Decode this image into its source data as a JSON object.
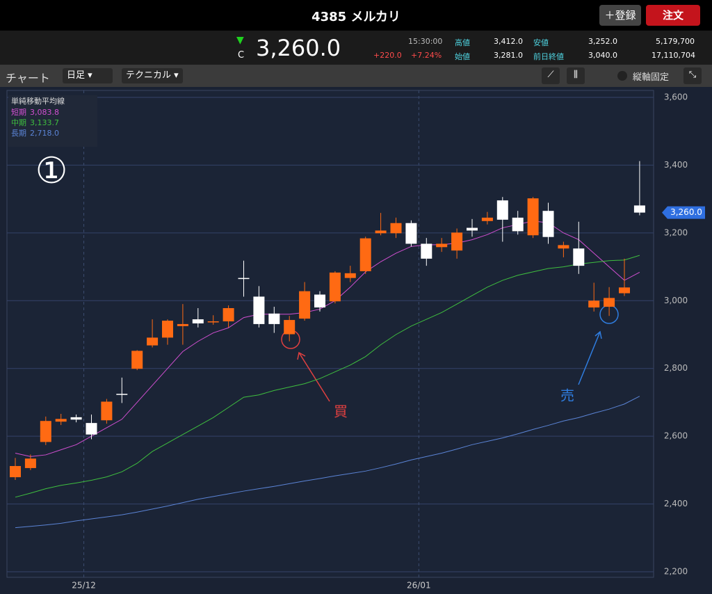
{
  "header": {
    "title": "4385 メルカリ",
    "add_button": "＋登録",
    "order_button": "注文"
  },
  "quote": {
    "direction": "▼",
    "close_mark": "C",
    "price": "3,260.0",
    "time": "15:30:00",
    "change": "+220.0",
    "change_pct": "+7.24%",
    "high_label": "高値",
    "high": "3,412.0",
    "low_label": "安値",
    "low": "3,252.0",
    "volume": "5,179,700",
    "open_label": "始値",
    "open": "3,281.0",
    "prev_label": "前日終値",
    "prev": "3,040.0",
    "turnover": "17,110,704"
  },
  "toolbar": {
    "title": "チャート",
    "period": "日足",
    "technical": "テクニカル",
    "axis_fixed": "縦軸固定"
  },
  "annotations": {
    "number": "①",
    "buy": "買",
    "sell": "売"
  },
  "chart_data": {
    "type": "candlestick",
    "legend_title": "単純移動平均線",
    "categories": [
      null,
      null,
      null,
      null,
      null,
      "25/12",
      null,
      null,
      null,
      null,
      null,
      null,
      null,
      null,
      null,
      null,
      null,
      null,
      null,
      null,
      null,
      null,
      null,
      null,
      null,
      null,
      null,
      "26/01",
      null,
      null,
      null,
      null,
      null,
      null,
      null,
      null,
      null,
      null,
      null,
      null,
      null,
      null
    ],
    "up_color": "#ff6a13",
    "down_color": "#ffffff",
    "open": [
      2479,
      2506,
      2583,
      2643,
      2656,
      2639,
      2647,
      2725,
      2799,
      2868,
      2891,
      2925,
      2945,
      2937,
      2939,
      3067,
      3012,
      2962,
      2901,
      2947,
      3018,
      2998,
      3067,
      3087,
      3199,
      3199,
      3229,
      3168,
      3158,
      3148,
      3215,
      3235,
      3296,
      3245,
      3193,
      3265,
      3154,
      3154,
      2980,
      2982,
      3022,
      3281
    ],
    "high": [
      2536,
      2546,
      2658,
      2666,
      2664,
      2664,
      2710,
      2773,
      2854,
      2945,
      2945,
      2990,
      2978,
      2957,
      2986,
      3118,
      3043,
      2982,
      2955,
      3055,
      3028,
      3087,
      3103,
      3189,
      3259,
      3245,
      3237,
      3185,
      3185,
      3213,
      3241,
      3262,
      3306,
      3265,
      3306,
      3289,
      3174,
      3233,
      3053,
      3040,
      3124,
      3412
    ],
    "low": [
      2471,
      2500,
      2574,
      2633,
      2641,
      2591,
      2637,
      2698,
      2795,
      2862,
      2870,
      2870,
      2921,
      2929,
      2921,
      3012,
      2921,
      2905,
      2880,
      2941,
      2968,
      2992,
      3055,
      3079,
      3193,
      3185,
      3160,
      3103,
      3144,
      3124,
      3189,
      3225,
      3174,
      3195,
      3185,
      3168,
      3128,
      3079,
      2968,
      2955,
      3014,
      3252
    ],
    "close": [
      2512,
      2534,
      2645,
      2651,
      2649,
      2605,
      2702,
      2723,
      2852,
      2891,
      2941,
      2931,
      2933,
      2939,
      2978,
      3065,
      2931,
      2931,
      2943,
      3028,
      2980,
      3083,
      3081,
      3184,
      3207,
      3229,
      3168,
      3124,
      3168,
      3201,
      3207,
      3245,
      3239,
      3205,
      3302,
      3188,
      3164,
      3103,
      3000,
      3008,
      3039,
      3260
    ],
    "series": [
      {
        "name": "短期",
        "legend_label": "3,083.8",
        "color": "#d14fd1",
        "values": [
          2550,
          2540,
          2545,
          2560,
          2575,
          2600,
          2625,
          2650,
          2700,
          2750,
          2800,
          2850,
          2880,
          2905,
          2920,
          2950,
          2960,
          2960,
          2960,
          2965,
          2975,
          3000,
          3040,
          3085,
          3115,
          3140,
          3160,
          3165,
          3165,
          3170,
          3180,
          3195,
          3215,
          3225,
          3235,
          3230,
          3200,
          3180,
          3140,
          3100,
          3060,
          3083.8
        ]
      },
      {
        "name": "中期",
        "legend_label": "3,133.7",
        "color": "#3fbf3f",
        "values": [
          2420,
          2432,
          2445,
          2455,
          2462,
          2470,
          2480,
          2495,
          2520,
          2555,
          2580,
          2605,
          2630,
          2655,
          2685,
          2715,
          2722,
          2735,
          2745,
          2755,
          2770,
          2790,
          2810,
          2835,
          2870,
          2900,
          2925,
          2945,
          2965,
          2990,
          3015,
          3040,
          3060,
          3075,
          3085,
          3095,
          3100,
          3108,
          3113,
          3118,
          3120,
          3133.7
        ]
      },
      {
        "name": "長期",
        "legend_label": "2,718.0",
        "color": "#5b84d6",
        "values": [
          2330,
          2334,
          2338,
          2343,
          2350,
          2356,
          2362,
          2368,
          2376,
          2385,
          2394,
          2404,
          2414,
          2422,
          2430,
          2438,
          2445,
          2452,
          2460,
          2468,
          2475,
          2483,
          2490,
          2497,
          2507,
          2518,
          2530,
          2540,
          2550,
          2562,
          2575,
          2585,
          2595,
          2607,
          2620,
          2632,
          2645,
          2655,
          2668,
          2680,
          2695,
          2718
        ]
      }
    ],
    "ylim": [
      2200,
      3600
    ],
    "yticks": [
      {
        "value": 2200,
        "label": "2,200"
      },
      {
        "value": 2400,
        "label": "2,400"
      },
      {
        "value": 2600,
        "label": "2,600"
      },
      {
        "value": 2800,
        "label": "2,800"
      },
      {
        "value": 3000,
        "label": "3,000"
      },
      {
        "value": 3200,
        "label": "3,200"
      },
      {
        "value": 3400,
        "label": "3,400"
      },
      {
        "value": 3600,
        "label": "3,600"
      }
    ],
    "grid": true
  }
}
